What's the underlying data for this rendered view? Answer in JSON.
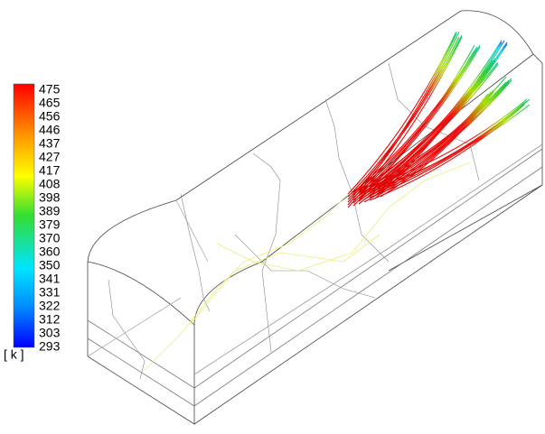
{
  "colorbar": {
    "ticks": [
      "475",
      "465",
      "456",
      "446",
      "437",
      "427",
      "417",
      "408",
      "398",
      "389",
      "379",
      "370",
      "360",
      "350",
      "341",
      "331",
      "322",
      "312",
      "303",
      "293"
    ],
    "unit": "[ k ]"
  }
}
